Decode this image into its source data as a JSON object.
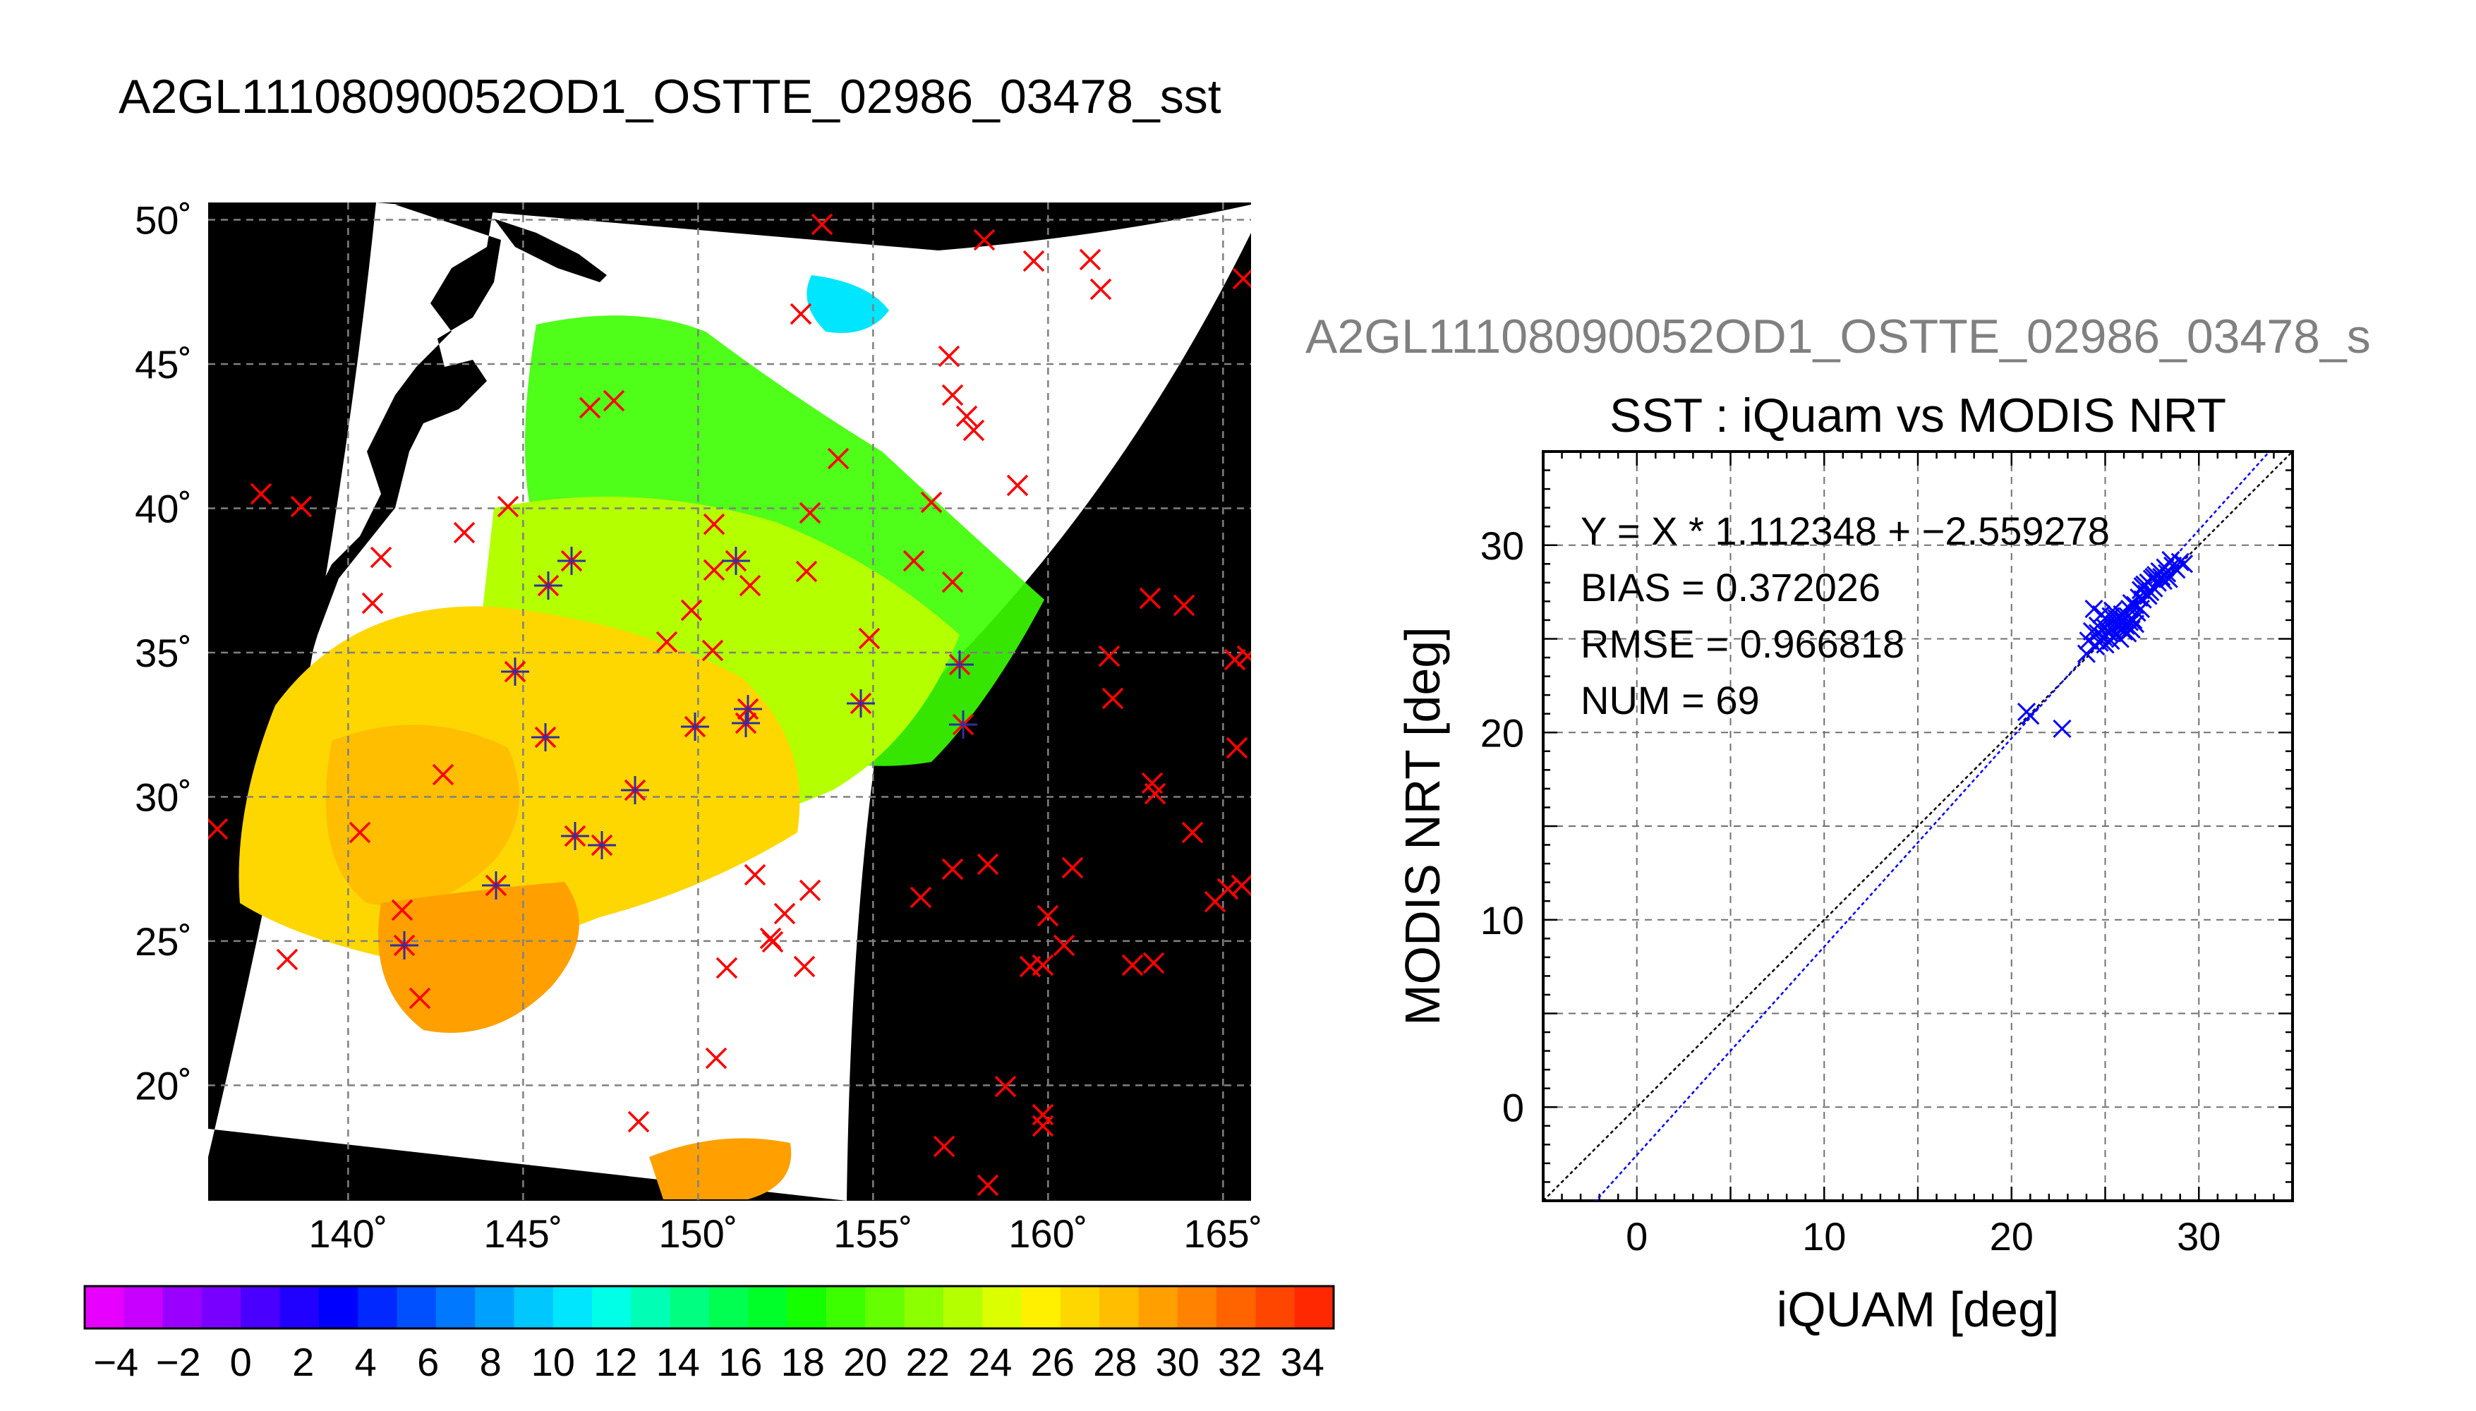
{
  "figure_title": "A2GL11108090052OD1_OSTTE_02986_03478_sst",
  "map": {
    "lat_labels": [
      "50˚",
      "45˚",
      "40˚",
      "35˚",
      "30˚",
      "25˚",
      "20˚"
    ],
    "lat_values": [
      50,
      45,
      40,
      35,
      30,
      25,
      20
    ],
    "lon_labels": [
      "140˚",
      "145˚",
      "150˚",
      "155˚",
      "160˚",
      "165˚"
    ],
    "lon_values": [
      140,
      145,
      150,
      155,
      160,
      165
    ],
    "lon_range": [
      136,
      165.8
    ],
    "lat_range": [
      16,
      50.6
    ]
  },
  "colorbar": {
    "tick_labels": [
      "−4",
      "−2",
      "0",
      "2",
      "4",
      "6",
      "8",
      "10",
      "12",
      "14",
      "16",
      "18",
      "20",
      "22",
      "24",
      "26",
      "28",
      "30",
      "32",
      "34"
    ],
    "range": [
      -5,
      35
    ],
    "colors": [
      "#e600ff",
      "#c800ff",
      "#9a00ff",
      "#7800ff",
      "#4a00ff",
      "#2000ff",
      "#0000ff",
      "#0028ff",
      "#0050ff",
      "#0078ff",
      "#00a0ff",
      "#00c8ff",
      "#00e6ff",
      "#00ffe6",
      "#00ffb4",
      "#00ff80",
      "#00ff50",
      "#00ff28",
      "#14ff00",
      "#3cff00",
      "#64ff00",
      "#8cff00",
      "#b4ff00",
      "#dcff00",
      "#fff000",
      "#ffd700",
      "#ffbe00",
      "#ffa000",
      "#ff8200",
      "#ff6400",
      "#ff4600",
      "#ff2800"
    ]
  },
  "scatter_header": "A2GL11108090052OD1_OSTTE_02986_03478_s",
  "chart_data": {
    "type": "scatter",
    "title": "SST : iQuam vs MODIS NRT",
    "xlabel": "iQUAM [deg]",
    "ylabel": "MODIS NRT [deg]",
    "xlim": [
      -5,
      35
    ],
    "ylim": [
      -5,
      35
    ],
    "x_ticks": [
      0,
      10,
      20,
      30
    ],
    "y_ticks": [
      0,
      10,
      20,
      30
    ],
    "grid": true,
    "stats": {
      "line1": "Y = X * 1.112348 + −2.559278",
      "line2": "BIAS = 0.372026",
      "line3": "RMSE = 0.966818",
      "line4": "NUM = 69"
    },
    "fit": {
      "slope": 1.112348,
      "intercept": -2.559278
    },
    "points": [
      [
        20.8,
        21.1
      ],
      [
        21.0,
        20.9
      ],
      [
        22.7,
        20.2
      ],
      [
        24.0,
        24.2
      ],
      [
        24.1,
        24.9
      ],
      [
        24.3,
        25.4
      ],
      [
        24.4,
        26.6
      ],
      [
        24.5,
        24.6
      ],
      [
        24.6,
        25.3
      ],
      [
        24.7,
        24.8
      ],
      [
        24.8,
        26.3
      ],
      [
        24.9,
        25.1
      ],
      [
        25.0,
        24.7
      ],
      [
        25.0,
        25.6
      ],
      [
        25.1,
        26.0
      ],
      [
        25.2,
        25.3
      ],
      [
        25.3,
        24.9
      ],
      [
        25.3,
        26.2
      ],
      [
        25.4,
        25.5
      ],
      [
        25.5,
        25.8
      ],
      [
        25.6,
        25.2
      ],
      [
        25.6,
        26.1
      ],
      [
        25.7,
        25.6
      ],
      [
        25.8,
        25.9
      ],
      [
        25.9,
        26.3
      ],
      [
        26.0,
        25.4
      ],
      [
        26.0,
        26.0
      ],
      [
        26.1,
        25.7
      ],
      [
        26.2,
        26.2
      ],
      [
        26.2,
        25.3
      ],
      [
        26.3,
        26.6
      ],
      [
        26.4,
        25.5
      ],
      [
        26.5,
        26.0
      ],
      [
        26.6,
        25.8
      ],
      [
        26.7,
        26.4
      ],
      [
        26.8,
        27.2
      ],
      [
        26.9,
        27.6
      ],
      [
        27.0,
        27.1
      ],
      [
        27.1,
        27.9
      ],
      [
        27.2,
        27.4
      ],
      [
        27.3,
        28.0
      ],
      [
        27.4,
        27.5
      ],
      [
        27.5,
        28.2
      ],
      [
        27.6,
        27.7
      ],
      [
        27.7,
        28.4
      ],
      [
        27.8,
        28.0
      ],
      [
        27.9,
        28.6
      ],
      [
        28.0,
        28.3
      ],
      [
        28.1,
        28.1
      ],
      [
        28.2,
        28.8
      ],
      [
        28.3,
        28.5
      ],
      [
        28.4,
        28.2
      ],
      [
        28.6,
        28.9
      ],
      [
        28.8,
        28.7
      ],
      [
        29.0,
        29.1
      ],
      [
        29.2,
        29.0
      ],
      [
        25.8,
        25.0
      ],
      [
        25.4,
        26.5
      ],
      [
        26.4,
        26.9
      ],
      [
        25.2,
        25.9
      ],
      [
        27.0,
        27.8
      ],
      [
        27.6,
        28.3
      ],
      [
        24.6,
        25.7
      ],
      [
        26.9,
        26.6
      ],
      [
        28.5,
        29.2
      ],
      [
        27.3,
        27.3
      ],
      [
        26.6,
        26.8
      ],
      [
        25.9,
        25.6
      ],
      [
        26.3,
        25.9
      ]
    ]
  }
}
